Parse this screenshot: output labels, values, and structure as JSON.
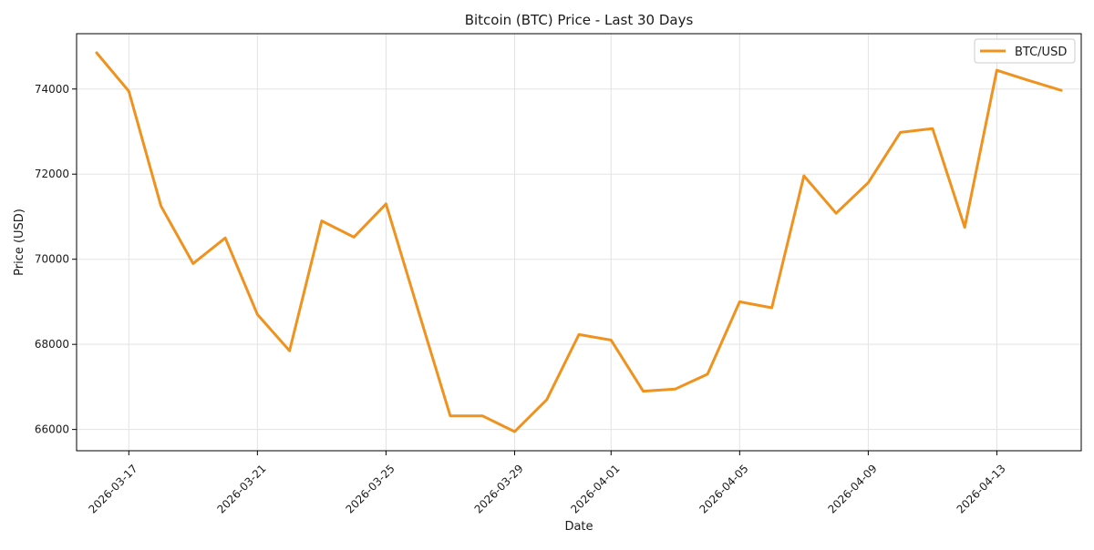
{
  "chart_data": {
    "type": "line",
    "title": "Bitcoin (BTC) Price - Last 30 Days",
    "xlabel": "Date",
    "ylabel": "Price (USD)",
    "x": [
      "2026-03-16",
      "2026-03-17",
      "2026-03-18",
      "2026-03-19",
      "2026-03-20",
      "2026-03-21",
      "2026-03-22",
      "2026-03-23",
      "2026-03-24",
      "2026-03-25",
      "2026-03-26",
      "2026-03-27",
      "2026-03-28",
      "2026-03-29",
      "2026-03-30",
      "2026-03-31",
      "2026-04-01",
      "2026-04-02",
      "2026-04-03",
      "2026-04-04",
      "2026-04-05",
      "2026-04-06",
      "2026-04-07",
      "2026-04-08",
      "2026-04-09",
      "2026-04-10",
      "2026-04-11",
      "2026-04-12",
      "2026-04-13",
      "2026-04-14",
      "2026-04-15"
    ],
    "series": [
      {
        "name": "BTC/USD",
        "color": "#f0921e",
        "values": [
          74850,
          73950,
          71250,
          69900,
          70500,
          68700,
          67850,
          70900,
          70520,
          71300,
          68800,
          66320,
          66320,
          65950,
          66700,
          68230,
          68100,
          66900,
          66950,
          67300,
          69000,
          68860,
          71960,
          71080,
          71800,
          72980,
          73070,
          70750,
          74440,
          74200,
          73970
        ]
      }
    ],
    "x_ticks": [
      "2026-03-17",
      "2026-03-21",
      "2026-03-25",
      "2026-03-29",
      "2026-04-01",
      "2026-04-05",
      "2026-04-09",
      "2026-04-13"
    ],
    "y_ticks": [
      66000,
      68000,
      70000,
      72000,
      74000
    ],
    "ylim": [
      65500,
      75300
    ],
    "xlim": [
      "2026-03-15T09:00",
      "2026-04-15T15:00"
    ],
    "grid": true,
    "legend_position": "top-right"
  }
}
